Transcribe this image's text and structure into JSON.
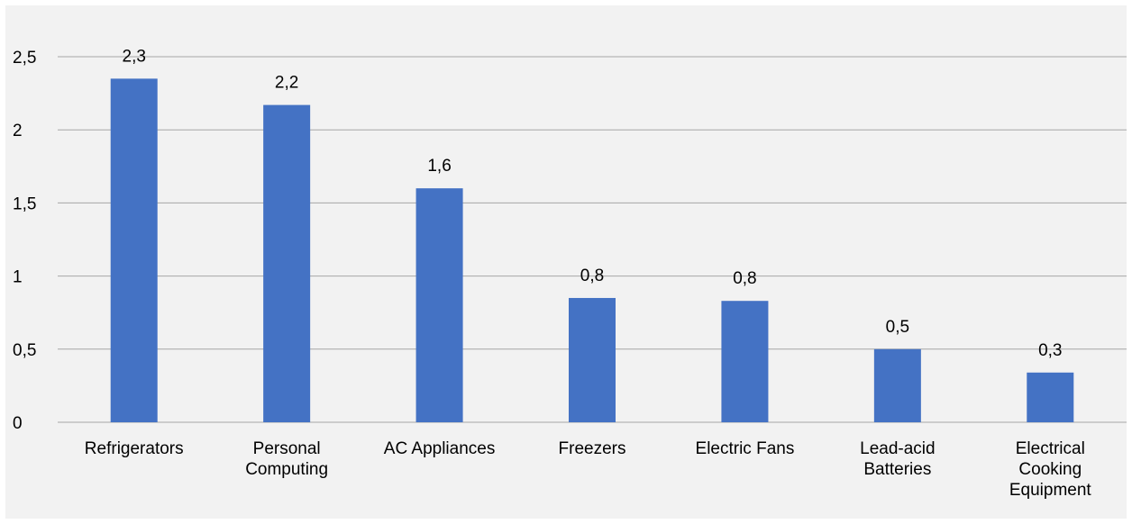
{
  "chart_data": {
    "type": "bar",
    "categories": [
      [
        "Refrigerators"
      ],
      [
        "Personal",
        "Computing"
      ],
      [
        "AC Appliances"
      ],
      [
        "Freezers"
      ],
      [
        "Electric Fans"
      ],
      [
        "Lead-acid",
        "Batteries"
      ],
      [
        "Electrical",
        "Cooking",
        "Equipment"
      ]
    ],
    "values": [
      2.35,
      2.17,
      1.6,
      0.85,
      0.83,
      0.5,
      0.34
    ],
    "data_labels": [
      "2,3",
      "2,2",
      "1,6",
      "0,8",
      "0,8",
      "0,5",
      "0,3"
    ],
    "y_ticks": [
      {
        "value": 0,
        "label": "0"
      },
      {
        "value": 0.5,
        "label": "0,5"
      },
      {
        "value": 1,
        "label": "1"
      },
      {
        "value": 1.5,
        "label": "1,5"
      },
      {
        "value": 2,
        "label": "2"
      },
      {
        "value": 2.5,
        "label": "2,5"
      }
    ],
    "ylim": [
      0,
      2.5
    ],
    "grid": true,
    "legend": "none",
    "title": "",
    "xlabel": "",
    "ylabel": "",
    "colors": {
      "bar": "#4472c4",
      "grid": "#a6a6a6",
      "background": "#f2f2f2"
    }
  }
}
